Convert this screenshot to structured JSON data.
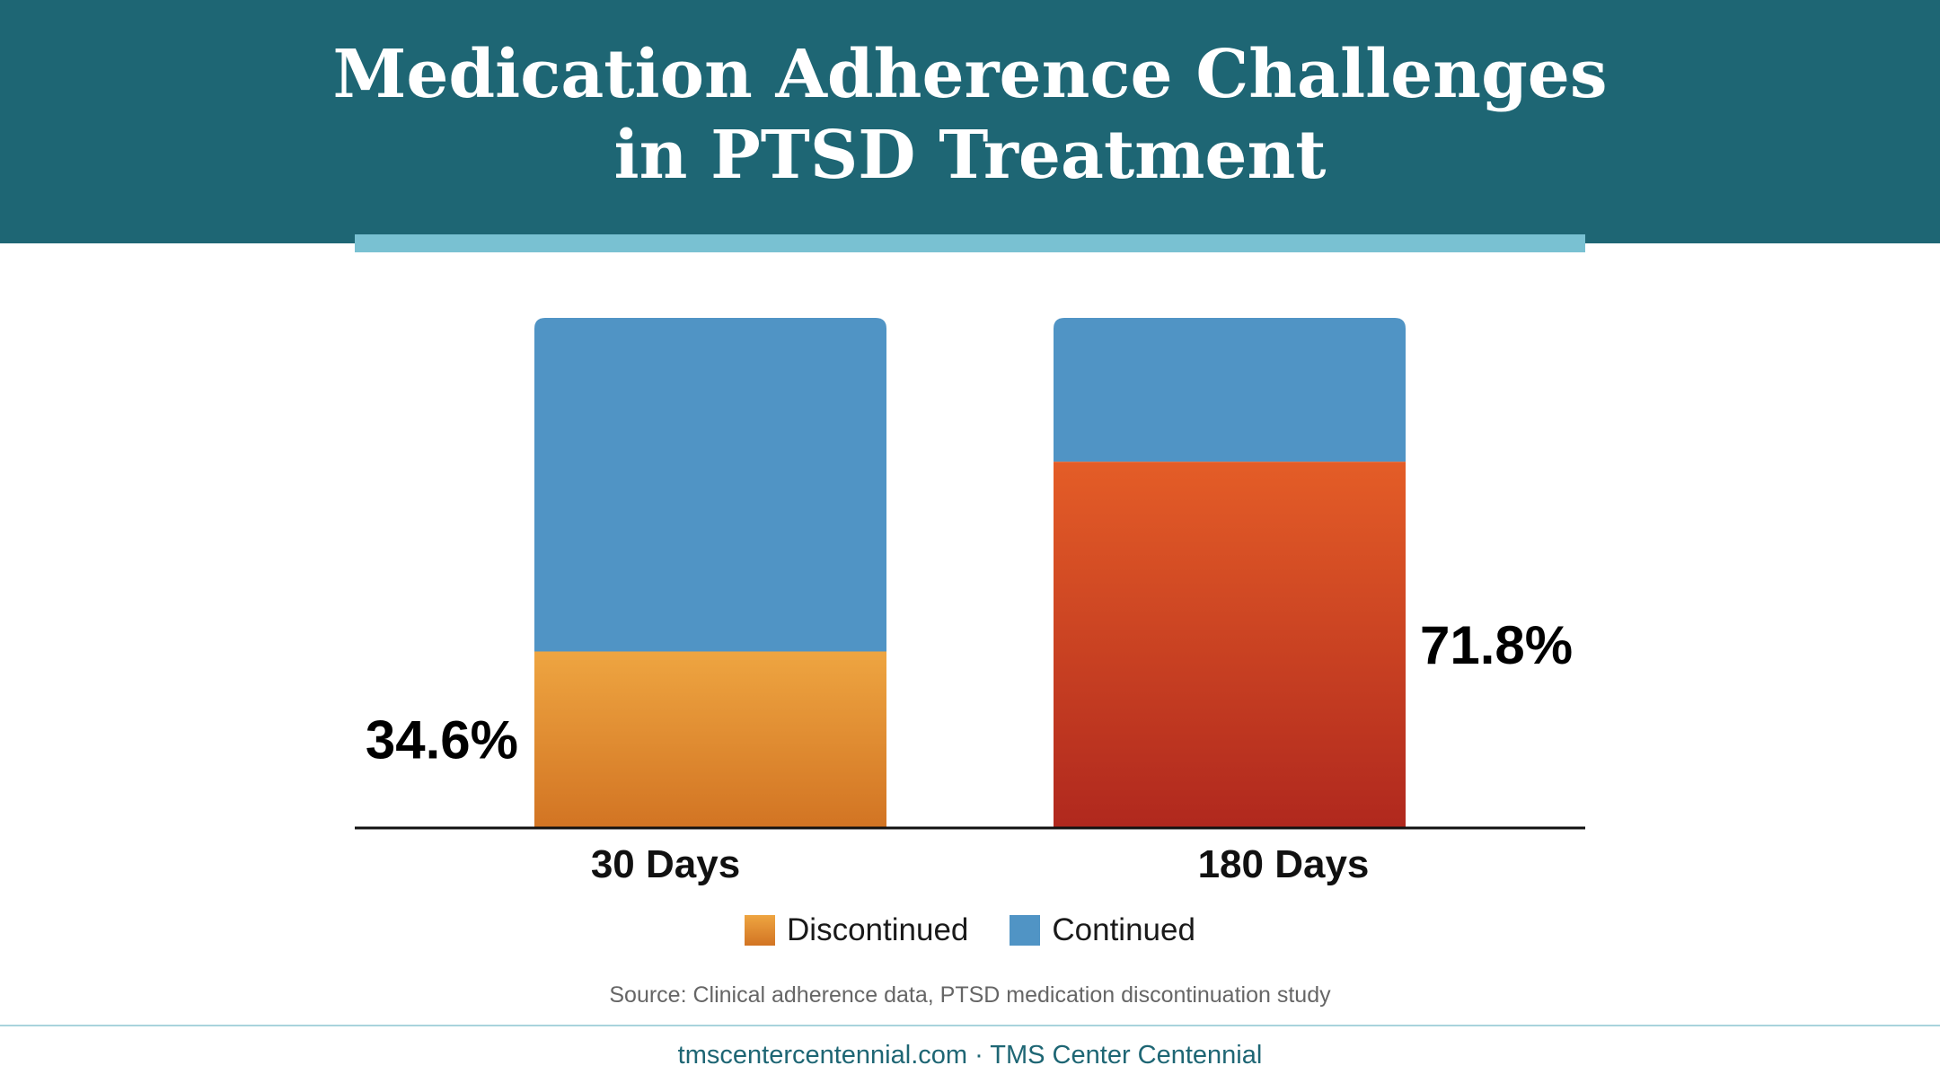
{
  "header": {
    "title_line1": "Medication Adherence Challenges",
    "title_line2": "in PTSD Treatment",
    "background_color": "#1e6674",
    "accent_color": "#79c1d2"
  },
  "chart_data": {
    "type": "bar",
    "stacked": true,
    "title": "Medication Adherence Challenges in PTSD Treatment",
    "categories": [
      "30 Days",
      "180 Days"
    ],
    "series": [
      {
        "name": "Discontinued",
        "values": [
          34.6,
          71.8
        ],
        "data_labels": [
          "34.6%",
          "71.8%"
        ],
        "colors": {
          "30 Days": {
            "top": "#eea541",
            "bottom": "#d27423"
          },
          "180 Days": {
            "top": "#e45d27",
            "bottom": "#b0281e"
          }
        }
      },
      {
        "name": "Continued",
        "values": [
          65.4,
          28.2
        ],
        "color": "#5094c5"
      }
    ],
    "ylim": [
      0,
      100
    ],
    "unit": "%",
    "grid": false,
    "legend_position": "bottom-center"
  },
  "legend": {
    "items": [
      {
        "label": "Discontinued",
        "color": "#e8903a"
      },
      {
        "label": "Continued",
        "color": "#5094c5"
      }
    ]
  },
  "source_text": "Source: Clinical adherence data, PTSD medication discontinuation study",
  "footer_text": "tmscentercentennial.com · TMS Center Centennial"
}
